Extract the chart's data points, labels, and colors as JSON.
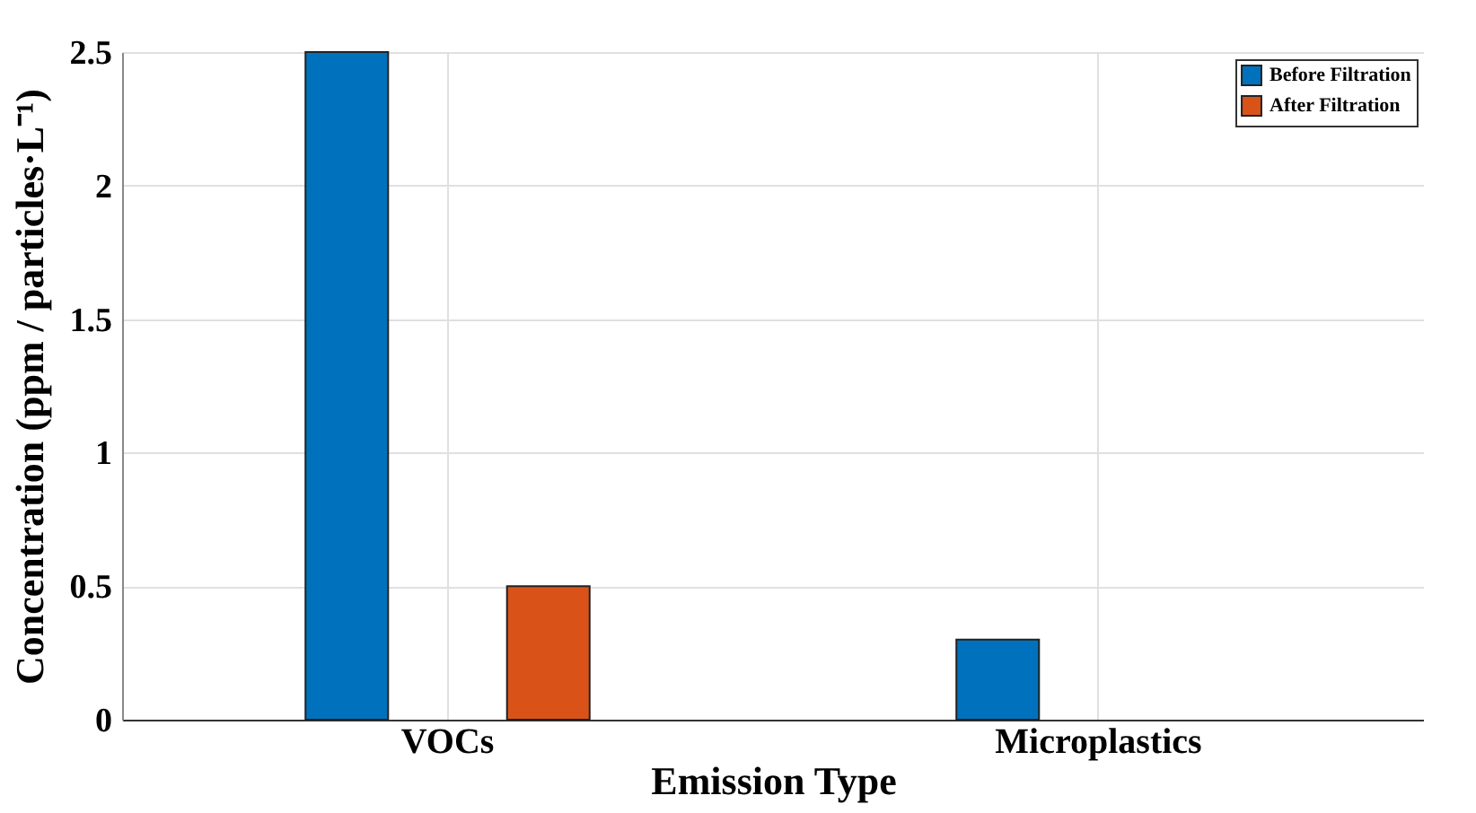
{
  "chart_data": {
    "type": "bar",
    "xlabel": "Emission Type",
    "ylabel": "Concentration (ppm / particles·L⁻¹)",
    "categories": [
      "VOCs",
      "Microplastics"
    ],
    "series": [
      {
        "name": "Before Filtration",
        "color": "#0072bd",
        "values": [
          2.5,
          0.3
        ]
      },
      {
        "name": "After Filtration",
        "color": "#d95319",
        "values": [
          0.5,
          0
        ]
      }
    ],
    "ylim": [
      0,
      2.5
    ],
    "yticks": [
      0,
      0.5,
      1,
      1.5,
      2,
      2.5
    ],
    "grid": true,
    "legend": "top right"
  }
}
